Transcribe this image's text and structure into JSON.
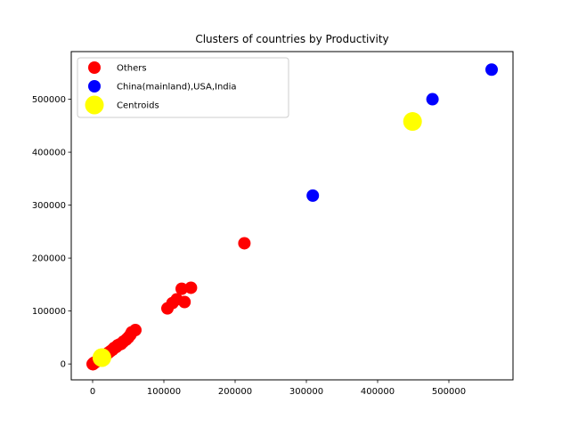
{
  "chart_data": {
    "type": "scatter",
    "title": "Clusters of countries by Productivity",
    "xlabel": "",
    "ylabel": "",
    "xlim": [
      -30000,
      590000
    ],
    "ylim": [
      -30000,
      590000
    ],
    "x_ticks": [
      0,
      100000,
      200000,
      300000,
      400000,
      500000
    ],
    "y_ticks": [
      0,
      100000,
      200000,
      300000,
      400000,
      500000
    ],
    "x_tick_labels": [
      "0",
      "100000",
      "200000",
      "300000",
      "400000",
      "500000"
    ],
    "y_tick_labels": [
      "0",
      "100000",
      "200000",
      "300000",
      "400000",
      "500000"
    ],
    "grid": false,
    "legend_position": "top-left",
    "series": [
      {
        "name": "Others",
        "color": "#ff0000",
        "marker": "small",
        "points": [
          [
            0,
            0
          ],
          [
            1000,
            800
          ],
          [
            2000,
            1500
          ],
          [
            3000,
            2500
          ],
          [
            500,
            -500
          ],
          [
            1500,
            2000
          ],
          [
            4000,
            3500
          ],
          [
            6000,
            5500
          ],
          [
            8000,
            7000
          ],
          [
            10000,
            9000
          ],
          [
            12000,
            10500
          ],
          [
            15000,
            14000
          ],
          [
            18000,
            17000
          ],
          [
            20000,
            19000
          ],
          [
            22000,
            21000
          ],
          [
            25000,
            24000
          ],
          [
            28000,
            27000
          ],
          [
            30000,
            30000
          ],
          [
            33000,
            32000
          ],
          [
            35000,
            35000
          ],
          [
            38000,
            37000
          ],
          [
            40000,
            38000
          ],
          [
            43000,
            42000
          ],
          [
            47000,
            46000
          ],
          [
            50000,
            50000
          ],
          [
            53000,
            55000
          ],
          [
            55000,
            60000
          ],
          [
            60000,
            64000
          ],
          [
            105000,
            105000
          ],
          [
            112000,
            115000
          ],
          [
            118000,
            122000
          ],
          [
            125000,
            142000
          ],
          [
            129000,
            117000
          ],
          [
            138000,
            144000
          ],
          [
            213000,
            228000
          ]
        ]
      },
      {
        "name": "China(mainland),USA,India",
        "color": "#0000ff",
        "marker": "small",
        "points": [
          [
            309000,
            318000
          ],
          [
            477000,
            500000
          ],
          [
            560000,
            556000
          ]
        ]
      },
      {
        "name": "Centroids",
        "color": "#ffff00",
        "marker": "large",
        "points": [
          [
            13000,
            12000
          ],
          [
            449000,
            458000
          ]
        ]
      }
    ]
  }
}
